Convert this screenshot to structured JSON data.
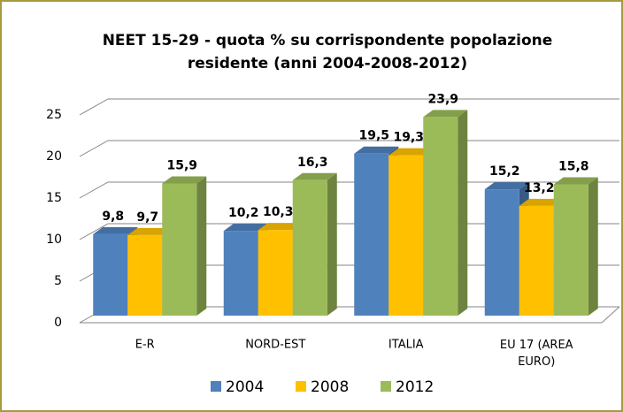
{
  "chart_data": {
    "type": "bar3d",
    "title": [
      "NEET 15-29 - quota % su corrispondente popolazione",
      "residente (anni 2004-2008-2012)"
    ],
    "categories": [
      "E-R",
      "NORD-EST",
      "ITALIA",
      "EU 17 (AREA EURO)"
    ],
    "series": [
      {
        "name": "2004",
        "color": "#4f81bd",
        "values": [
          9.8,
          10.2,
          19.5,
          15.2
        ],
        "value_labels": [
          "9,8",
          "10,2",
          "19,5",
          "15,2"
        ]
      },
      {
        "name": "2008",
        "color": "#ffc000",
        "values": [
          9.7,
          10.3,
          19.3,
          13.2
        ],
        "value_labels": [
          "9,7",
          "10,3",
          "19,3",
          "13,2"
        ]
      },
      {
        "name": "2012",
        "color": "#9bbb59",
        "values": [
          15.9,
          16.3,
          23.9,
          15.8
        ],
        "value_labels": [
          "15,9",
          "16,3",
          "23,9",
          "15,8"
        ]
      }
    ],
    "ylim": [
      0,
      25
    ],
    "yticks": [
      0,
      5,
      10,
      15,
      20,
      25
    ],
    "grid": true,
    "legend": "bottom"
  }
}
